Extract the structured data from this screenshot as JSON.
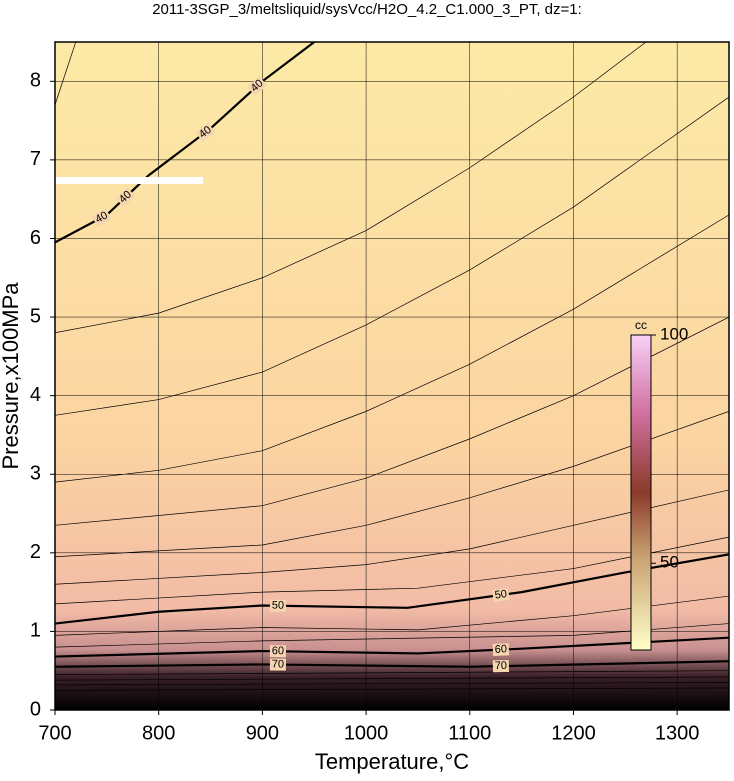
{
  "chart_data": {
    "type": "contour",
    "title": "2011-3SGP_3/meltsliquid/sysVcc/H2O_4.2_C1.000_3_PT, dz=1:",
    "xlabel": "Temperature,°C",
    "ylabel": "Pressure,x100MPa",
    "xlim": [
      700,
      1350
    ],
    "ylim": [
      0,
      8.5
    ],
    "xticks": [
      700,
      800,
      900,
      1000,
      1100,
      1200,
      1300
    ],
    "yticks": [
      0,
      1,
      2,
      3,
      4,
      5,
      6,
      7,
      8
    ],
    "grid": true,
    "contours": [
      {
        "level": 40,
        "x": [
          700,
          750,
          790,
          850,
          900,
          950
        ],
        "y": [
          5.95,
          6.3,
          6.8,
          7.4,
          8.0,
          8.5
        ]
      },
      {
        "level": 50,
        "x": [
          700,
          800,
          900,
          1040,
          1150,
          1250,
          1350
        ],
        "y": [
          1.1,
          1.25,
          1.33,
          1.3,
          1.5,
          1.75,
          1.98
        ]
      },
      {
        "level": 60,
        "x": [
          700,
          900,
          1050,
          1150,
          1350
        ],
        "y": [
          0.68,
          0.75,
          0.72,
          0.78,
          0.92
        ]
      },
      {
        "level": 70,
        "x": [
          700,
          900,
          1100,
          1350
        ],
        "y": [
          0.55,
          0.58,
          0.55,
          0.62
        ]
      },
      {
        "x": [
          700,
          720
        ],
        "y": [
          7.7,
          8.5
        ]
      },
      {
        "x": [
          700,
          800,
          900,
          1000,
          1100,
          1200,
          1270
        ],
        "y": [
          4.8,
          5.05,
          5.5,
          6.1,
          6.9,
          7.8,
          8.5
        ]
      },
      {
        "x": [
          700,
          800,
          900,
          1000,
          1100,
          1200,
          1350
        ],
        "y": [
          3.75,
          3.95,
          4.3,
          4.9,
          5.6,
          6.4,
          7.8
        ]
      },
      {
        "x": [
          700,
          800,
          900,
          1000,
          1100,
          1200,
          1350
        ],
        "y": [
          2.9,
          3.05,
          3.3,
          3.8,
          4.4,
          5.1,
          6.3
        ]
      },
      {
        "x": [
          700,
          900,
          1000,
          1100,
          1200,
          1350
        ],
        "y": [
          2.35,
          2.6,
          2.95,
          3.45,
          4.0,
          5.0
        ]
      },
      {
        "x": [
          700,
          900,
          1000,
          1100,
          1200,
          1350
        ],
        "y": [
          1.95,
          2.1,
          2.35,
          2.7,
          3.1,
          3.8
        ]
      },
      {
        "x": [
          700,
          900,
          1000,
          1100,
          1200,
          1350
        ],
        "y": [
          1.6,
          1.75,
          1.85,
          2.05,
          2.35,
          2.8
        ]
      },
      {
        "x": [
          700,
          900,
          1050,
          1200,
          1350
        ],
        "y": [
          1.35,
          1.5,
          1.55,
          1.8,
          2.2
        ]
      },
      {
        "x": [
          700,
          900,
          1050,
          1200,
          1350
        ],
        "y": [
          0.95,
          1.05,
          1.02,
          1.2,
          1.45
        ]
      },
      {
        "x": [
          700,
          900,
          1200,
          1350
        ],
        "y": [
          0.8,
          0.88,
          0.95,
          1.1
        ]
      },
      {
        "x": [
          700,
          1350
        ],
        "y": [
          0.45,
          0.5
        ]
      },
      {
        "x": [
          700,
          1350
        ],
        "y": [
          0.38,
          0.42
        ]
      },
      {
        "x": [
          700,
          1350
        ],
        "y": [
          0.32,
          0.35
        ]
      },
      {
        "x": [
          700,
          1350
        ],
        "y": [
          0.25,
          0.28
        ]
      }
    ],
    "colorbar": {
      "label": "cc",
      "lim": [
        31,
        100
      ],
      "ticks": [
        50,
        100
      ]
    }
  }
}
